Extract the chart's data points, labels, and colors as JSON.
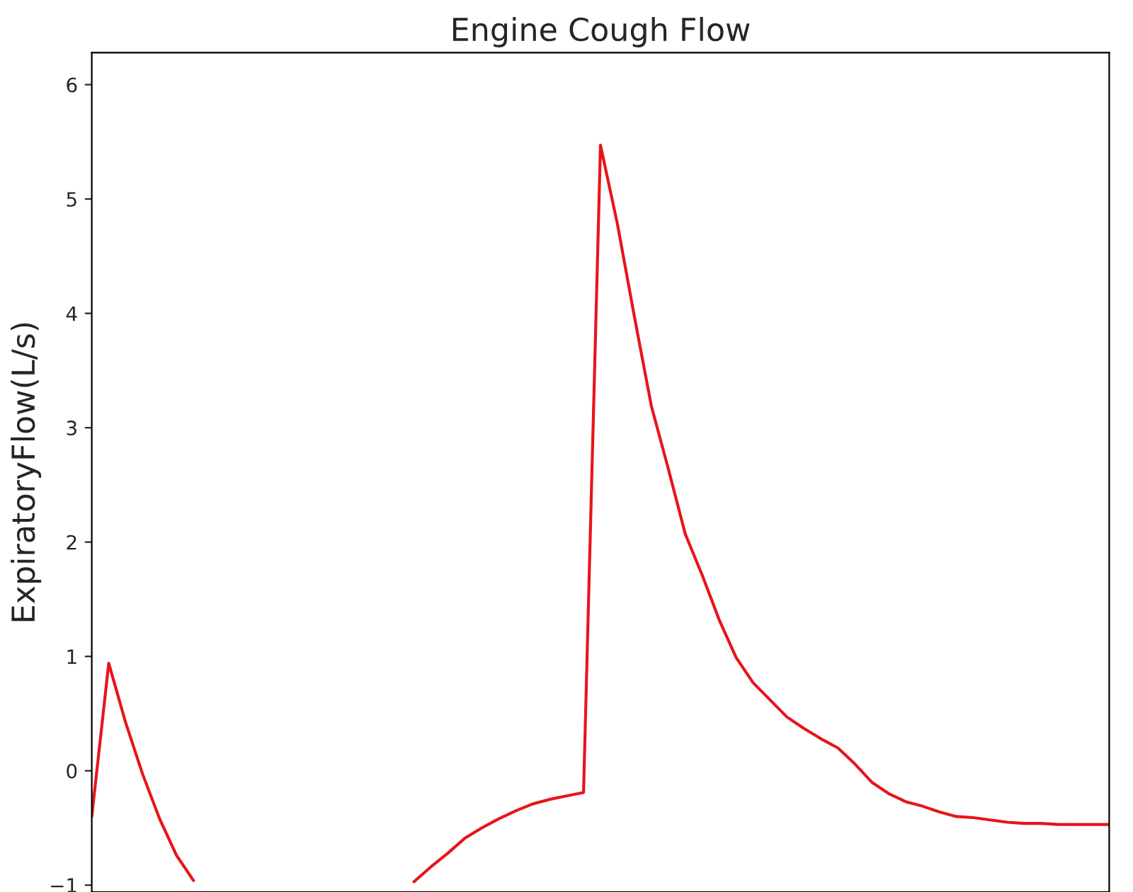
{
  "chart_data": {
    "type": "line",
    "title": "Engine Cough Flow",
    "ylabel": "ExpiratoryFlow(L/s)",
    "categories": [
      null,
      null,
      null,
      null,
      null,
      null,
      null,
      null,
      null,
      null,
      null,
      null,
      null,
      null,
      null,
      null,
      null,
      null,
      null,
      null,
      null,
      null,
      null,
      null,
      null,
      null,
      null,
      null,
      null,
      null,
      null,
      null,
      null,
      null,
      null,
      null,
      null,
      null,
      null,
      null,
      null,
      null,
      null,
      null,
      null,
      null,
      null,
      null,
      null,
      null,
      null,
      null,
      null,
      null,
      null,
      null,
      null,
      null,
      null,
      null,
      null
    ],
    "series": [
      {
        "color": "#e8141b",
        "values": [
          -0.4,
          0.94,
          0.42,
          -0.03,
          -0.42,
          -0.74,
          -0.96,
          null,
          null,
          null,
          null,
          null,
          null,
          null,
          null,
          null,
          null,
          null,
          null,
          null,
          null,
          null,
          null,
          null,
          null,
          null,
          null,
          null,
          null,
          null,
          null,
          null,
          null,
          null,
          null,
          null,
          null,
          null,
          null,
          null,
          null,
          null,
          null,
          null,
          null,
          null,
          null,
          null,
          null,
          null,
          null,
          null,
          null,
          null,
          null,
          null,
          null,
          null,
          null,
          null,
          null
        ]
      },
      {
        "color": "#e8141b",
        "values": [
          null,
          null,
          null,
          null,
          null,
          null,
          null,
          null,
          null,
          null,
          null,
          null,
          null,
          null,
          null,
          null,
          null,
          null,
          null,
          -0.97,
          -0.84,
          -0.72,
          -0.59,
          -0.5,
          -0.42,
          -0.35,
          -0.29,
          -0.25,
          -0.22,
          -0.19,
          5.47,
          4.78,
          3.97,
          3.19,
          2.64,
          2.07,
          1.71,
          1.32,
          0.99,
          0.77,
          0.62,
          0.47,
          0.37,
          0.28,
          0.2,
          0.06,
          -0.1,
          -0.2,
          -0.27,
          -0.31,
          -0.36,
          -0.4,
          -0.41,
          -0.43,
          -0.45,
          -0.46,
          -0.46,
          -0.47,
          -0.47,
          -0.47,
          -0.47
        ]
      }
    ],
    "ylim": [
      -1.06,
      6.28
    ],
    "yticks": [
      {
        "value": -1,
        "label": "−1"
      },
      0,
      1,
      2,
      3,
      4,
      5,
      6
    ],
    "tick_labels": "y",
    "grid": false,
    "legend": false,
    "marker": "none",
    "line_style": "solid"
  }
}
